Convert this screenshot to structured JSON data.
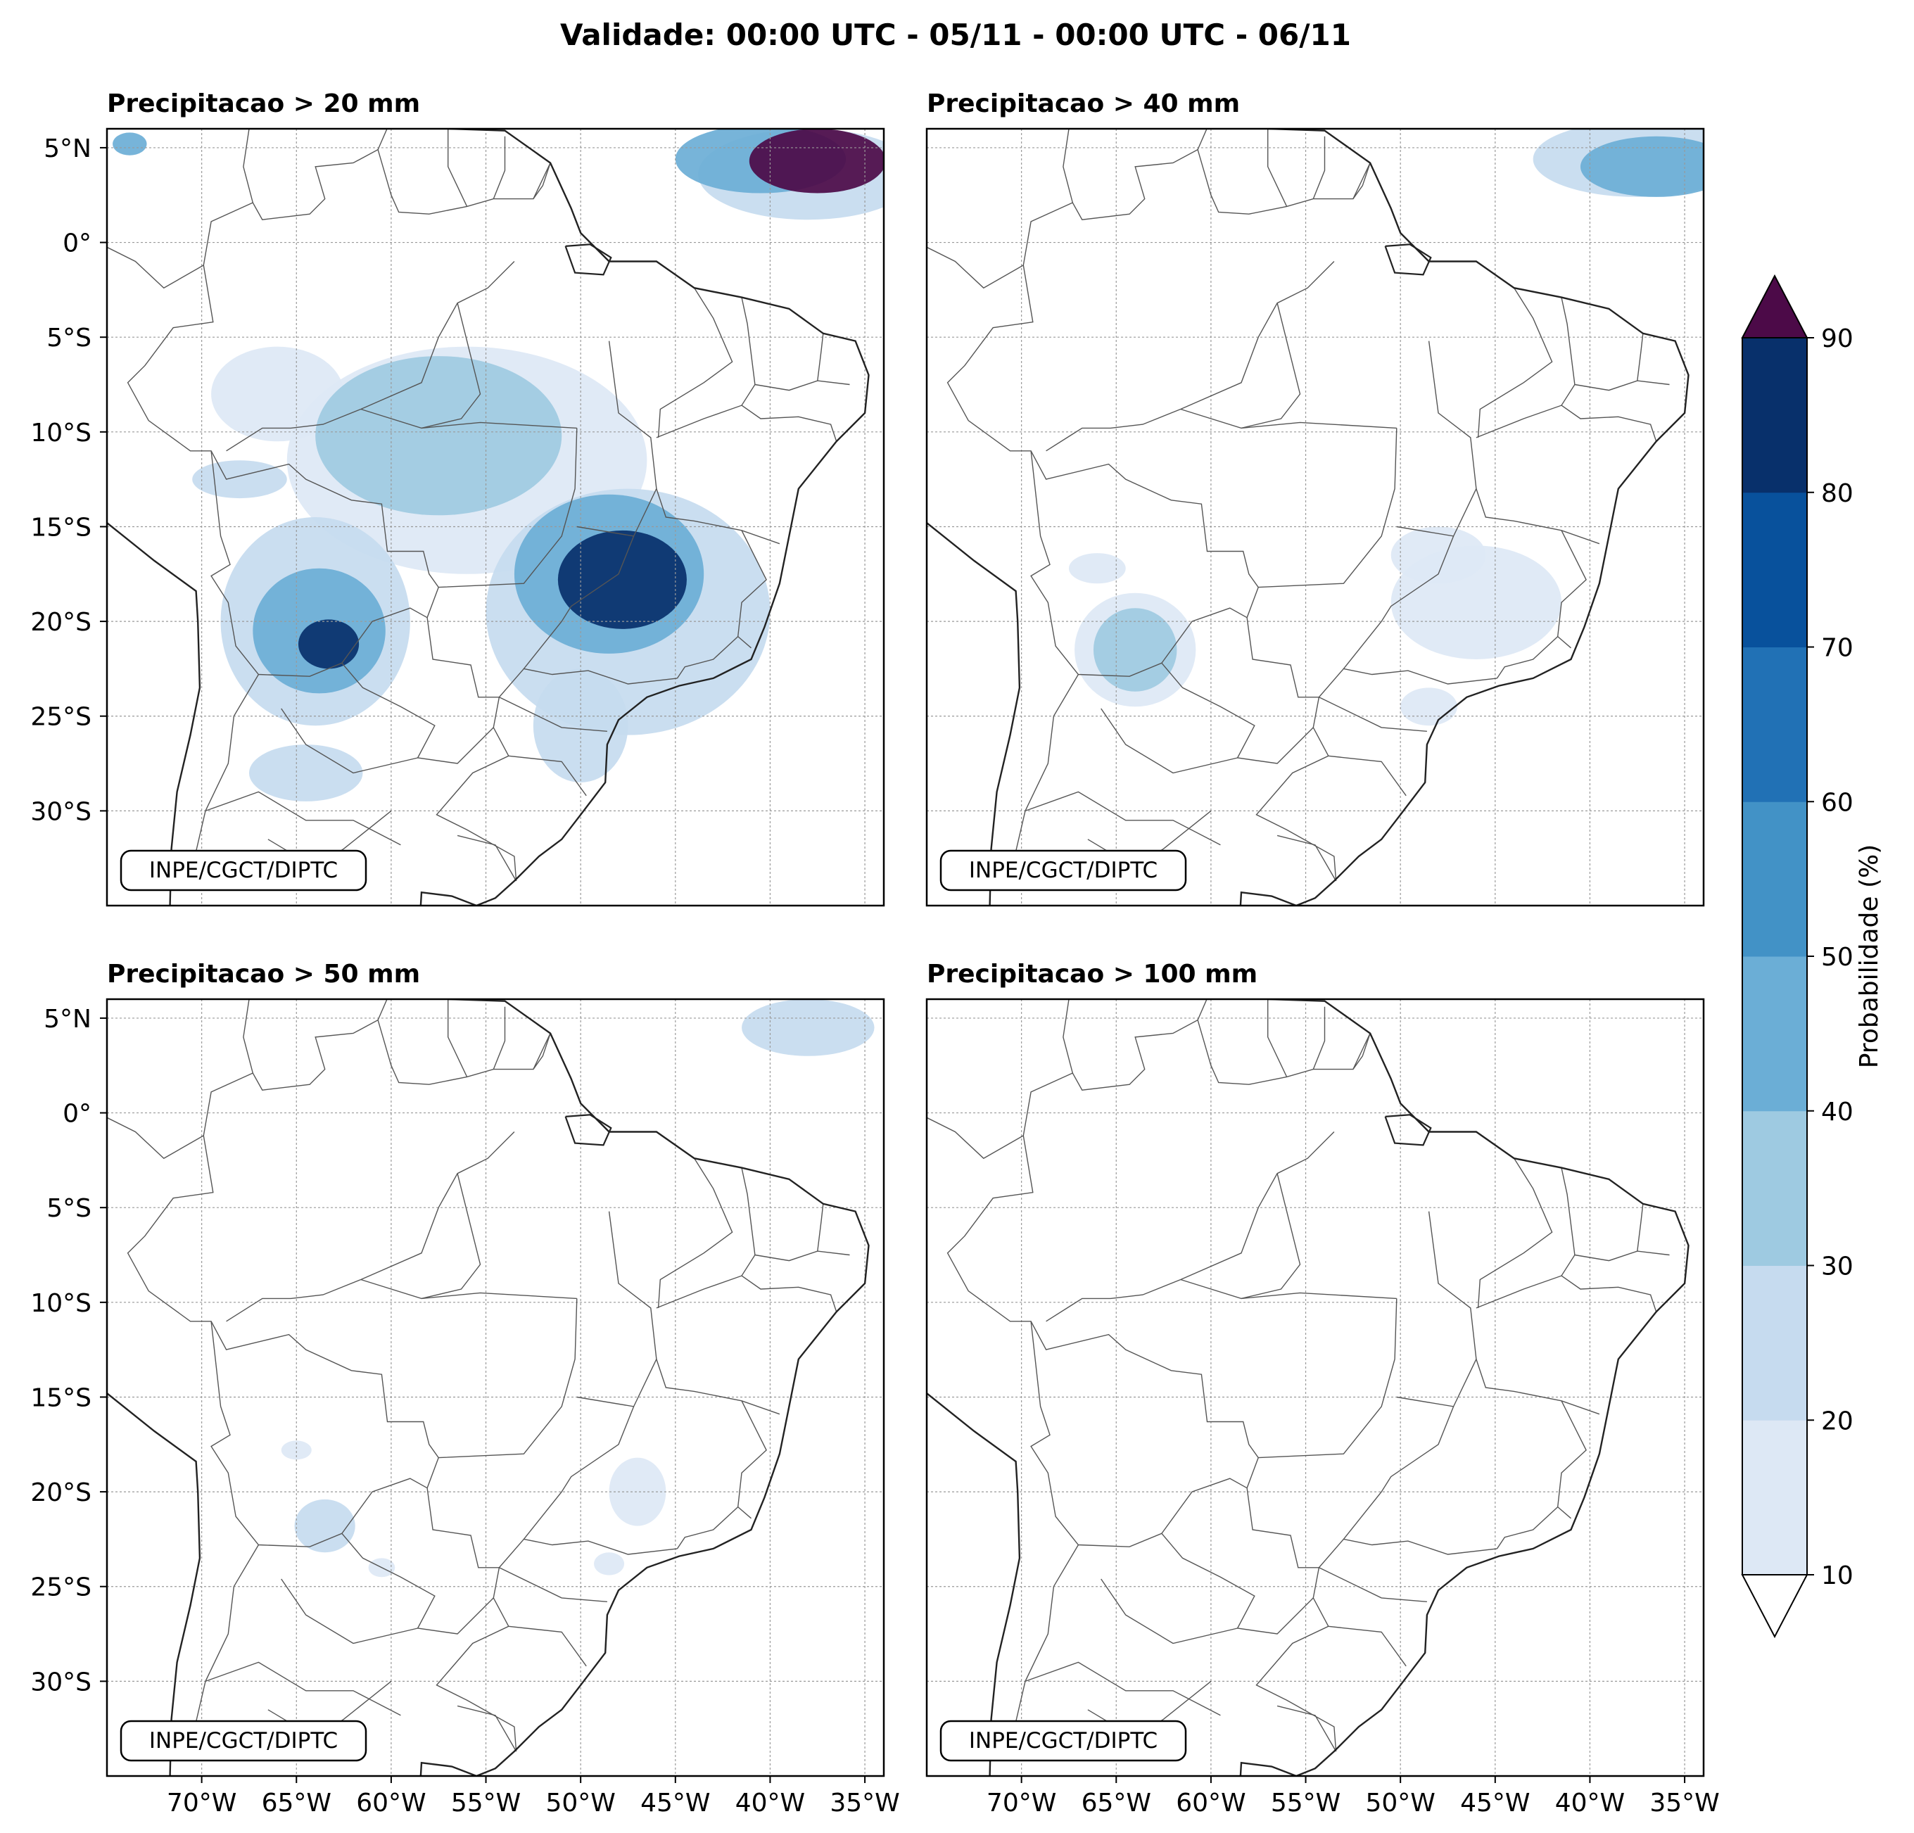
{
  "figure_title": "Validade: 00:00 UTC - 05/11 - 00:00 UTC - 06/11",
  "credit": "INPE/CGCT/DIPTC",
  "lat_labels": [
    "5°N",
    "0°",
    "5°S",
    "10°S",
    "15°S",
    "20°S",
    "25°S",
    "30°S"
  ],
  "lon_labels": [
    "70°W",
    "65°W",
    "60°W",
    "55°W",
    "50°W",
    "45°W",
    "40°W",
    "35°W"
  ],
  "lat_values": [
    5,
    0,
    -5,
    -10,
    -15,
    -20,
    -25,
    -30
  ],
  "lon_values": [
    -70,
    -65,
    -60,
    -55,
    -50,
    -45,
    -40,
    -35
  ],
  "map_extent": {
    "lon_min": -75,
    "lon_max": -34,
    "lat_min": -35,
    "lat_max": 6
  },
  "panels": [
    {
      "title": "Precipitacao > 20 mm",
      "blobs": [
        {
          "lon": -37.5,
          "lat": 4.3,
          "rx": 3.6,
          "ry": 1.7,
          "level": 90
        },
        {
          "lon": -40.5,
          "lat": 4.4,
          "rx": 4.5,
          "ry": 1.8,
          "level": 40
        },
        {
          "lon": -38.0,
          "lat": 3.6,
          "rx": 5.8,
          "ry": 2.4,
          "level": 20
        },
        {
          "lon": -73.8,
          "lat": 5.2,
          "rx": 0.9,
          "ry": 0.6,
          "level": 40
        },
        {
          "lon": -47.8,
          "lat": -17.8,
          "rx": 3.4,
          "ry": 2.6,
          "level": 80
        },
        {
          "lon": -48.5,
          "lat": -17.5,
          "rx": 5.0,
          "ry": 4.2,
          "level": 40
        },
        {
          "lon": -47.5,
          "lat": -19.5,
          "rx": 7.5,
          "ry": 6.5,
          "level": 20
        },
        {
          "lon": -63.3,
          "lat": -21.2,
          "rx": 1.6,
          "ry": 1.3,
          "level": 80
        },
        {
          "lon": -63.8,
          "lat": -20.5,
          "rx": 3.5,
          "ry": 3.3,
          "level": 40
        },
        {
          "lon": -64.0,
          "lat": -20.0,
          "rx": 5.0,
          "ry": 5.5,
          "level": 20
        },
        {
          "lon": -57.5,
          "lat": -10.2,
          "rx": 6.5,
          "ry": 4.2,
          "level": 30
        },
        {
          "lon": -56.0,
          "lat": -11.5,
          "rx": 9.5,
          "ry": 6.0,
          "level": 10
        },
        {
          "lon": -66.0,
          "lat": -8.0,
          "rx": 3.5,
          "ry": 2.5,
          "level": 10
        },
        {
          "lon": -64.5,
          "lat": -28.0,
          "rx": 3.0,
          "ry": 1.5,
          "level": 20
        },
        {
          "lon": -50.0,
          "lat": -25.5,
          "rx": 2.5,
          "ry": 3.0,
          "level": 20
        },
        {
          "lon": -68.0,
          "lat": -12.5,
          "rx": 2.5,
          "ry": 1.0,
          "level": 20
        }
      ]
    },
    {
      "title": "Precipitacao > 40 mm",
      "blobs": [
        {
          "lon": -36.5,
          "lat": 4.0,
          "rx": 4.0,
          "ry": 1.6,
          "level": 40
        },
        {
          "lon": -37.5,
          "lat": 4.4,
          "rx": 5.5,
          "ry": 2.0,
          "level": 20
        },
        {
          "lon": -64.0,
          "lat": -21.5,
          "rx": 2.2,
          "ry": 2.2,
          "level": 30
        },
        {
          "lon": -64.0,
          "lat": -21.5,
          "rx": 3.2,
          "ry": 3.0,
          "level": 10
        },
        {
          "lon": -46.0,
          "lat": -19.0,
          "rx": 4.5,
          "ry": 3.0,
          "level": 10
        },
        {
          "lon": -66.0,
          "lat": -17.2,
          "rx": 1.5,
          "ry": 0.8,
          "level": 10
        },
        {
          "lon": -48.5,
          "lat": -24.5,
          "rx": 1.5,
          "ry": 1.0,
          "level": 10
        },
        {
          "lon": -48.0,
          "lat": -16.5,
          "rx": 2.5,
          "ry": 1.5,
          "level": 10
        }
      ]
    },
    {
      "title": "Precipitacao > 50 mm",
      "blobs": [
        {
          "lon": -38.0,
          "lat": 4.5,
          "rx": 3.5,
          "ry": 1.5,
          "level": 20
        },
        {
          "lon": -63.5,
          "lat": -21.8,
          "rx": 1.6,
          "ry": 1.4,
          "level": 20
        },
        {
          "lon": -47.0,
          "lat": -20.0,
          "rx": 1.5,
          "ry": 1.8,
          "level": 10
        },
        {
          "lon": -65.0,
          "lat": -17.8,
          "rx": 0.8,
          "ry": 0.5,
          "level": 10
        },
        {
          "lon": -48.5,
          "lat": -23.8,
          "rx": 0.8,
          "ry": 0.6,
          "level": 10
        },
        {
          "lon": -60.5,
          "lat": -24.0,
          "rx": 0.7,
          "ry": 0.5,
          "level": 10
        }
      ]
    },
    {
      "title": "Precipitacao > 100 mm",
      "blobs": []
    }
  ],
  "colorbar": {
    "label": "Probabilidade (%)",
    "ticks": [
      "10",
      "20",
      "30",
      "40",
      "50",
      "60",
      "70",
      "80",
      "90"
    ],
    "levels": [
      10,
      20,
      30,
      40,
      50,
      60,
      70,
      80,
      90
    ],
    "colors": [
      "#dde8f5",
      "#c6dbef",
      "#9ecae1",
      "#6baed6",
      "#4292c6",
      "#2171b5",
      "#08519c",
      "#08306b"
    ],
    "over_color": "#4c0a48",
    "under_color": "#ffffff"
  }
}
